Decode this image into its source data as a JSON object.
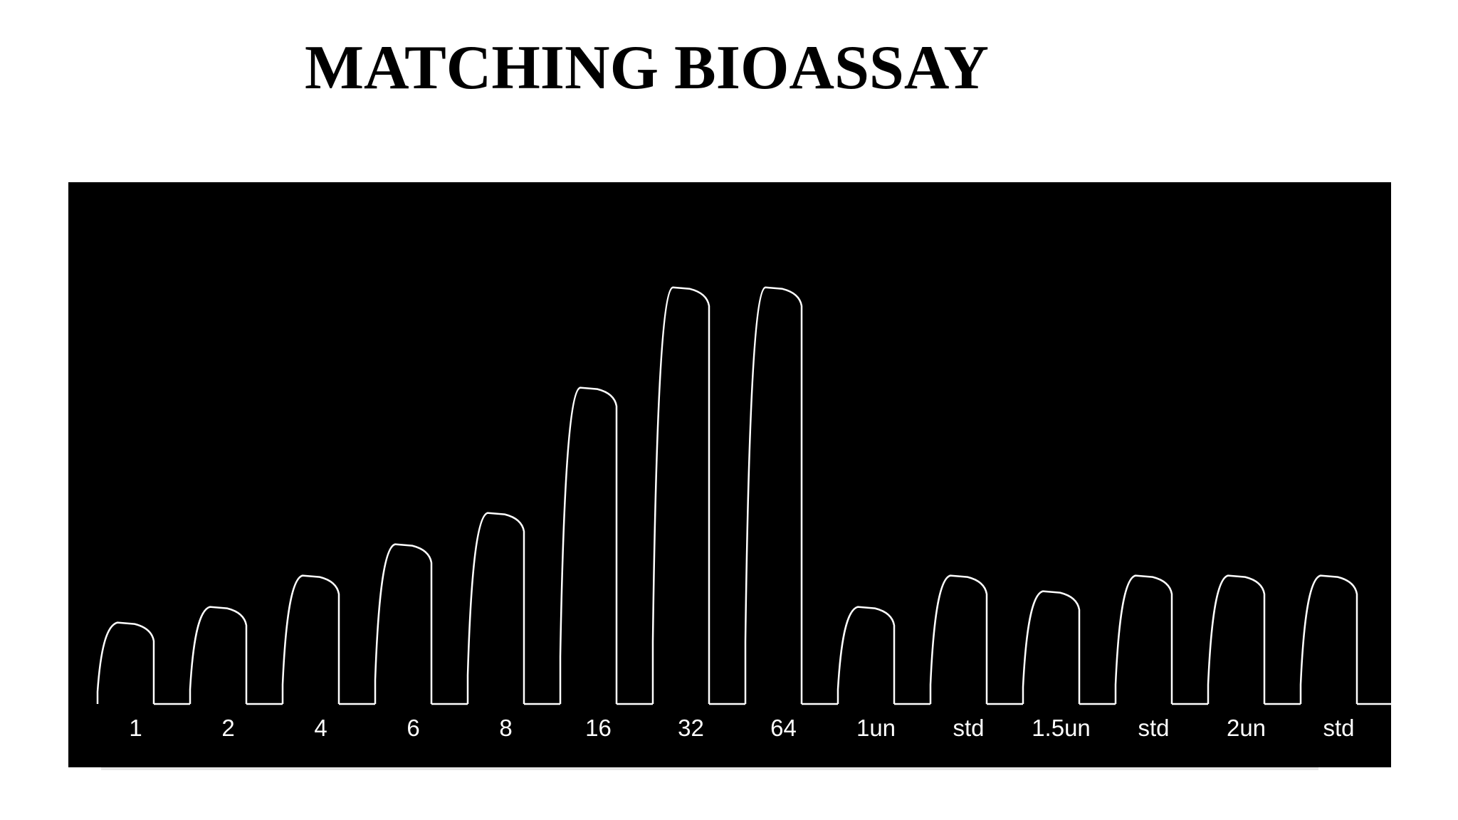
{
  "title": "MATCHING BIOASSAY",
  "chart_data": {
    "type": "bar",
    "title": "MATCHING BIOASSAY",
    "xlabel": "",
    "ylabel": "",
    "categories": [
      "1",
      "2",
      "4",
      "6",
      "8",
      "16",
      "32",
      "64",
      "1un",
      "std",
      "1.5un",
      "std",
      "2un",
      "std"
    ],
    "values": [
      1.3,
      1.55,
      2.05,
      2.55,
      3.05,
      5.05,
      6.65,
      6.65,
      1.55,
      2.05,
      1.8,
      2.05,
      2.05,
      2.05
    ],
    "ylim": [
      0,
      7
    ],
    "grid": false,
    "background": "#000000",
    "line_color": "#ffffff"
  }
}
